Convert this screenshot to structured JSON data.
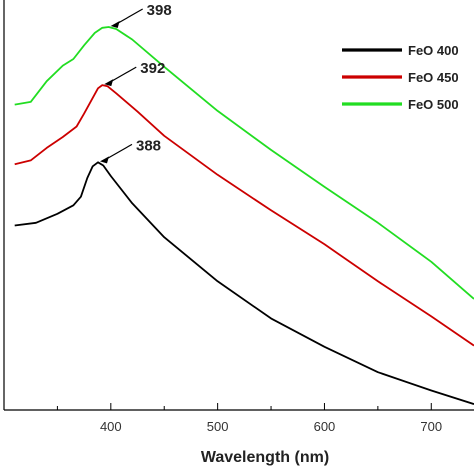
{
  "chart_data": {
    "type": "line",
    "xlabel": "Wavelength (nm)",
    "ylabel": "",
    "xlim": [
      300,
      740
    ],
    "ylim": [
      0,
      1
    ],
    "x_ticks": [
      400,
      500,
      600,
      700
    ],
    "grid": false,
    "legend_position": "top-right",
    "series": [
      {
        "name": "FeO 400",
        "color": "#000000",
        "points": [
          [
            310,
            0.473
          ],
          [
            330,
            0.48
          ],
          [
            350,
            0.503
          ],
          [
            365,
            0.525
          ],
          [
            372,
            0.547
          ],
          [
            378,
            0.595
          ],
          [
            383,
            0.625
          ],
          [
            388,
            0.635
          ],
          [
            393,
            0.627
          ],
          [
            400,
            0.6
          ],
          [
            420,
            0.53
          ],
          [
            450,
            0.443
          ],
          [
            500,
            0.33
          ],
          [
            550,
            0.235
          ],
          [
            600,
            0.162
          ],
          [
            650,
            0.097
          ],
          [
            700,
            0.05
          ],
          [
            740,
            0.015
          ]
        ]
      },
      {
        "name": "FeO 450",
        "color": "#cc0000",
        "points": [
          [
            310,
            0.63
          ],
          [
            325,
            0.64
          ],
          [
            340,
            0.672
          ],
          [
            355,
            0.7
          ],
          [
            368,
            0.727
          ],
          [
            375,
            0.76
          ],
          [
            382,
            0.795
          ],
          [
            388,
            0.825
          ],
          [
            392,
            0.833
          ],
          [
            397,
            0.83
          ],
          [
            405,
            0.812
          ],
          [
            425,
            0.765
          ],
          [
            450,
            0.703
          ],
          [
            500,
            0.603
          ],
          [
            550,
            0.512
          ],
          [
            600,
            0.425
          ],
          [
            650,
            0.33
          ],
          [
            700,
            0.24
          ],
          [
            740,
            0.165
          ]
        ]
      },
      {
        "name": "FeO 500",
        "color": "#22dd22",
        "points": [
          [
            310,
            0.783
          ],
          [
            325,
            0.79
          ],
          [
            340,
            0.843
          ],
          [
            355,
            0.883
          ],
          [
            365,
            0.9
          ],
          [
            375,
            0.935
          ],
          [
            385,
            0.967
          ],
          [
            392,
            0.98
          ],
          [
            398,
            0.982
          ],
          [
            405,
            0.977
          ],
          [
            420,
            0.95
          ],
          [
            450,
            0.88
          ],
          [
            500,
            0.767
          ],
          [
            550,
            0.667
          ],
          [
            600,
            0.572
          ],
          [
            650,
            0.48
          ],
          [
            700,
            0.38
          ],
          [
            740,
            0.285
          ]
        ]
      }
    ],
    "annotations": [
      {
        "text": "398",
        "x": 398,
        "y": 0.982
      },
      {
        "text": "392",
        "x": 392,
        "y": 0.833
      },
      {
        "text": "388",
        "x": 388,
        "y": 0.635
      }
    ]
  }
}
